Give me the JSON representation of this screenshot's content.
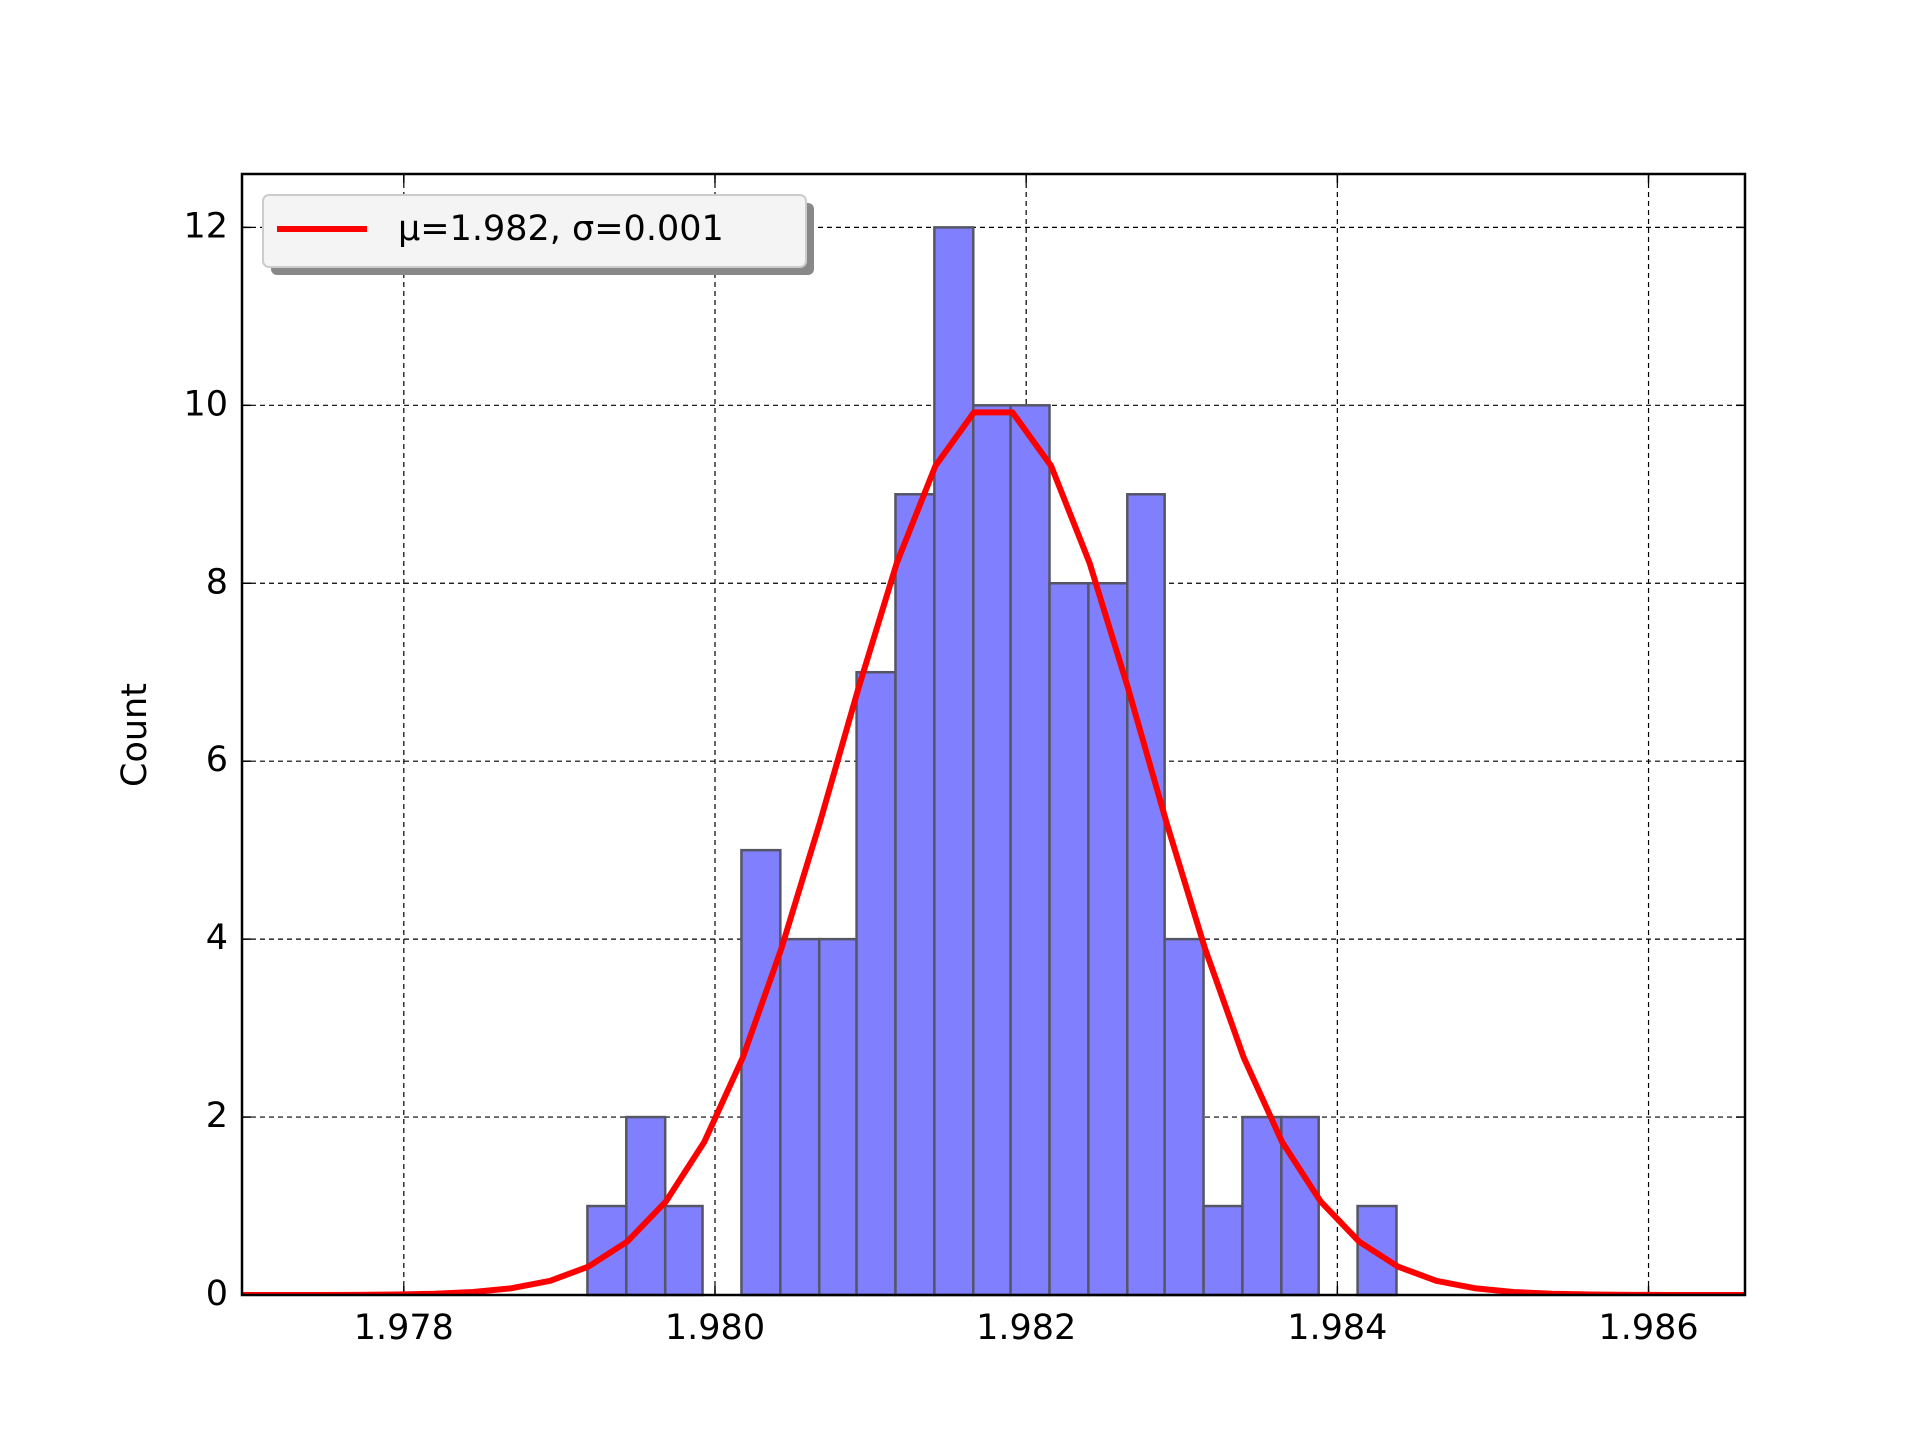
{
  "chart_data": {
    "type": "histogram",
    "ylabel": "Count",
    "bins": [
      1.97918,
      1.97943,
      1.97968,
      1.97992,
      1.98017,
      1.98042,
      1.98067,
      1.98091,
      1.98116,
      1.98141,
      1.98166,
      1.9819,
      1.98215,
      1.9824,
      1.98265,
      1.98289,
      1.98314,
      1.98339,
      1.98364,
      1.98388,
      1.98413,
      1.98438
    ],
    "values": [
      1,
      2,
      1,
      0,
      5,
      4,
      4,
      7,
      9,
      12,
      10,
      10,
      8,
      8,
      9,
      4,
      1,
      2,
      2,
      0,
      1
    ],
    "color": "#8080ff",
    "edgecolor": "#555566",
    "overlay": {
      "type": "line",
      "name": "μ=1.982, σ=0.001",
      "color": "#ff0000",
      "x": [
        1.97696,
        1.977208,
        1.977455,
        1.977703,
        1.97795,
        1.978198,
        1.978446,
        1.978693,
        1.978941,
        1.979188,
        1.979436,
        1.979684,
        1.979931,
        1.980179,
        1.980426,
        1.980674,
        1.980922,
        1.981169,
        1.981417,
        1.981664,
        1.981912,
        1.98216,
        1.982407,
        1.982655,
        1.982902,
        1.98315,
        1.983398,
        1.983645,
        1.983893,
        1.98414,
        1.984388,
        1.984636,
        1.984883,
        1.985131,
        1.985378,
        1.985626,
        1.985874,
        1.986121,
        1.986369,
        1.986616
      ],
      "values": [
        0.0001,
        0.0002,
        0.0007,
        0.002,
        0.006,
        0.014,
        0.034,
        0.076,
        0.16,
        0.32,
        0.6,
        1.05,
        1.72,
        2.67,
        3.89,
        5.31,
        6.82,
        8.23,
        9.32,
        9.92,
        9.92,
        9.32,
        8.23,
        6.82,
        5.31,
        3.89,
        2.67,
        1.72,
        1.05,
        0.6,
        0.32,
        0.16,
        0.076,
        0.034,
        0.014,
        0.006,
        0.002,
        0.0007,
        0.0002,
        0.0001
      ]
    },
    "xlim": [
      1.97696,
      1.98662
    ],
    "ylim": [
      0,
      12.6
    ],
    "xticks": [
      1.978,
      {
        "value": 1.98,
        "label": "1.980"
      },
      1.982,
      1.984,
      1.986
    ],
    "yticks": [
      0,
      2,
      4,
      6,
      8,
      10,
      12
    ],
    "grid": true,
    "legend": "upper left"
  }
}
